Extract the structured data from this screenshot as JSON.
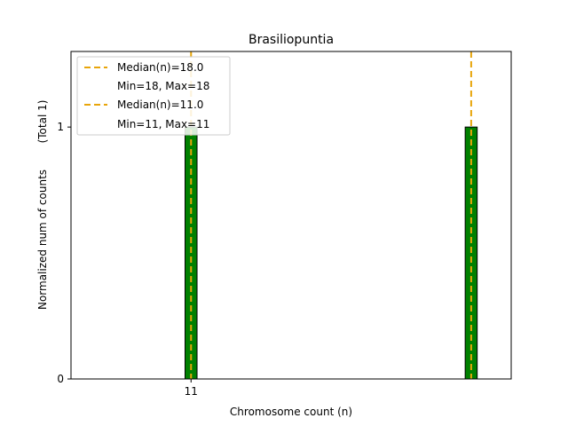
{
  "chart_data": {
    "type": "bar",
    "title": "Brasiliopuntia",
    "xlabel": "Chromosome count (n)",
    "ylabel": "Normalized num of counts",
    "ylabel_total": "(Total 1)",
    "xlim": [
      8.0,
      19.0
    ],
    "ylim": [
      0,
      1.3
    ],
    "x_tick_values": [
      11
    ],
    "x_tick_labels": [
      "11"
    ],
    "y_ticks": [
      "0",
      "1"
    ],
    "bars": [
      {
        "x": 11,
        "value": 1
      },
      {
        "x": 18,
        "value": 1
      }
    ],
    "medians": [
      18.0,
      11.0
    ],
    "legend": [
      {
        "median": "Median(n)=18.0",
        "range": "Min=18, Max=18"
      },
      {
        "median": "Median(n)=11.0",
        "range": "Min=11, Max=11"
      }
    ],
    "legend_position": "top-left",
    "grid": false,
    "colors": {
      "bar": "#008000",
      "bar_edge": "#000000",
      "median_line": "#e8a50a"
    }
  }
}
